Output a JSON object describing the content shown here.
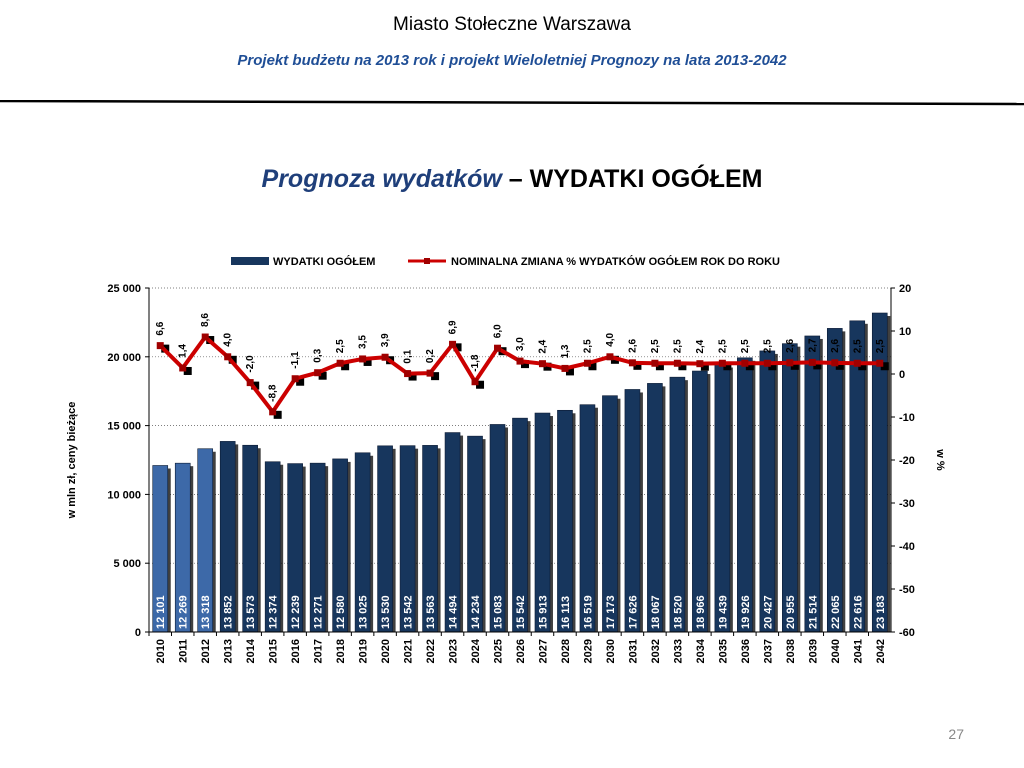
{
  "header": {
    "title": "Miasto Stołeczne Warszawa",
    "subtitle": "Projekt budżetu na 2013 rok i projekt Wieloletniej Prognozy na lata 2013-2042"
  },
  "chart_title": {
    "part1": "Prognoza wydatków",
    "part2": "– WYDATKI OGÓŁEM"
  },
  "page_number": "27",
  "colors": {
    "bar_dark": "#17365d",
    "bar_light": "#3d69a8",
    "line": "#cc0000",
    "line_marker": "#a00000"
  },
  "chart_data": {
    "type": "bar",
    "categories": [
      "2010",
      "2011",
      "2012",
      "2013",
      "2014",
      "2015",
      "2016",
      "2017",
      "2018",
      "2019",
      "2020",
      "2021",
      "2022",
      "2023",
      "2024",
      "2025",
      "2026",
      "2027",
      "2028",
      "2029",
      "2030",
      "2031",
      "2032",
      "2033",
      "2034",
      "2035",
      "2036",
      "2037",
      "2038",
      "2039",
      "2040",
      "2041",
      "2042"
    ],
    "series": [
      {
        "name": "WYDATKI OGÓŁEM",
        "type": "bar",
        "axis": "left",
        "values": [
          12101,
          12269,
          13318,
          13852,
          13573,
          12374,
          12239,
          12271,
          12580,
          13025,
          13530,
          13542,
          13563,
          14494,
          14234,
          15083,
          15542,
          15913,
          16113,
          16519,
          17173,
          17626,
          18067,
          18520,
          18966,
          19439,
          19926,
          20427,
          20955,
          21514,
          22065,
          22616,
          23183
        ],
        "labels": [
          "12 101",
          "12 269",
          "13 318",
          "13 852",
          "13 573",
          "12 374",
          "12 239",
          "12 271",
          "12 580",
          "13 025",
          "13 530",
          "13 542",
          "13 563",
          "14 494",
          "14 234",
          "15 083",
          "15 542",
          "15 913",
          "16 113",
          "16 519",
          "17 173",
          "17 626",
          "18 067",
          "18 520",
          "18 966",
          "19 439",
          "19 926",
          "20 427",
          "20 955",
          "21 514",
          "22 065",
          "22 616",
          "23 183"
        ],
        "light_count": 3
      },
      {
        "name": "NOMINALNA ZMIANA % WYDATKÓW OGÓŁEM ROK DO ROKU",
        "type": "line",
        "axis": "right",
        "values": [
          6.6,
          1.4,
          8.6,
          4.0,
          -2.0,
          -8.8,
          -1.1,
          0.3,
          2.5,
          3.5,
          3.9,
          0.1,
          0.2,
          6.9,
          -1.8,
          6.0,
          3.0,
          2.4,
          1.3,
          2.5,
          4.0,
          2.6,
          2.5,
          2.5,
          2.4,
          2.5,
          2.5,
          2.5,
          2.6,
          2.7,
          2.6,
          2.5,
          2.5
        ],
        "labels": [
          "6,6",
          "1,4",
          "8,6",
          "4,0",
          "-2,0",
          "-8,8",
          "-1,1",
          "0,3",
          "2,5",
          "3,5",
          "3,9",
          "0,1",
          "0,2",
          "6,9",
          "-1,8",
          "6,0",
          "3,0",
          "2,4",
          "1,3",
          "2,5",
          "4,0",
          "2,6",
          "2,5",
          "2,5",
          "2,4",
          "2,5",
          "2,5",
          "2,5",
          "2,6",
          "2,7",
          "2,6",
          "2,5",
          "2,5"
        ]
      }
    ],
    "ylabel": "w mln zł, ceny bieżące",
    "y2label": "w %",
    "ylim": [
      0,
      25000
    ],
    "y2lim": [
      -60,
      20
    ],
    "yticks": [
      "0",
      "5 000",
      "10 000",
      "15 000",
      "20 000",
      "25 000"
    ],
    "y2ticks": [
      "-60",
      "-50",
      "-40",
      "-30",
      "-20",
      "-10",
      "0",
      "10",
      "20"
    ],
    "legend_position": "top"
  }
}
